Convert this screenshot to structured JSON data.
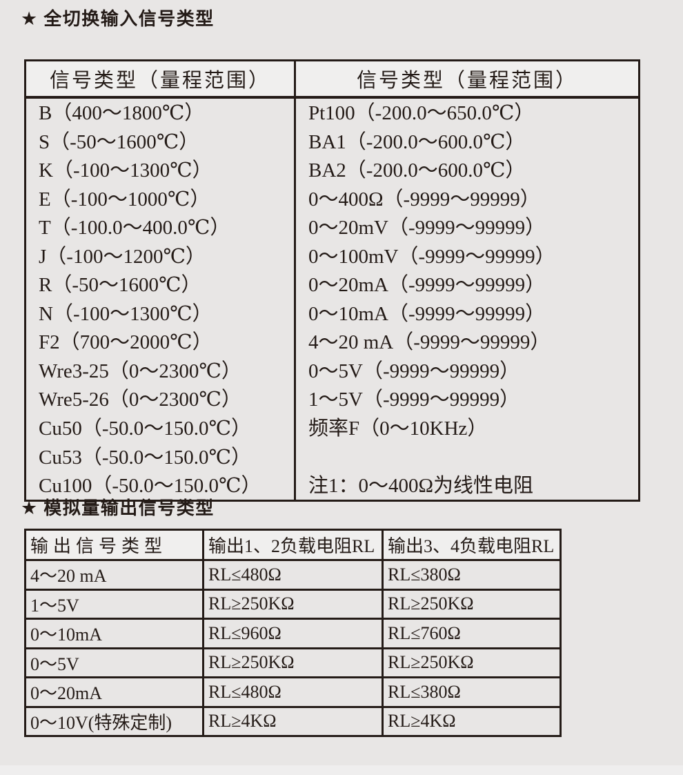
{
  "colors": {
    "page_bg": "#e8e6e5",
    "header_bg": "#f0efee",
    "border": "#241b17",
    "text": "#241b17"
  },
  "section_input": {
    "star": "★",
    "title": "全切换输入信号类型",
    "table": {
      "header_left": "信号类型（量程范围）",
      "header_right": "信号类型（量程范围）",
      "left_rows": [
        "B（400～1800℃）",
        "S（-50～1600℃）",
        "K（-100～1300℃）",
        "E（-100～1000℃）",
        "T（-100.0～400.0℃）",
        "J（-100～1200℃）",
        "R（-50～1600℃）",
        "N（-100～1300℃）",
        "F2（700～2000℃）",
        "Wre3-25（0～2300℃）",
        "Wre5-26（0～2300℃）",
        "Cu50（-50.0～150.0℃）",
        "Cu53（-50.0～150.0℃）",
        "Cu100（-50.0～150.0℃）"
      ],
      "right_rows": [
        "Pt100（-200.0～650.0℃）",
        "BA1（-200.0～600.0℃）",
        "BA2（-200.0～600.0℃）",
        "0～400Ω（-9999～99999）",
        "0～20mV（-9999～99999）",
        "0～100mV（-9999～99999）",
        "0～20mA（-9999～99999）",
        "0～10mA（-9999～99999）",
        "4～20 mA（-9999～99999）",
        "0～5V（-9999～99999）",
        "1～5V（-9999～99999）",
        "频率F（0～10KHz）"
      ],
      "note": "注1：0～400Ω为线性电阻"
    }
  },
  "section_output": {
    "star": "★",
    "title": "模拟量输出信号类型",
    "table": {
      "headers": [
        "输出信号类型",
        "输出1、2负载电阻RL",
        "输出3、4负载电阻RL"
      ],
      "rows": [
        [
          "4～20 mA",
          "RL≤480Ω",
          "RL≤380Ω"
        ],
        [
          "1～5V",
          "RL≥250KΩ",
          "RL≥250KΩ"
        ],
        [
          "0～10mA",
          "RL≤960Ω",
          "RL≤760Ω"
        ],
        [
          "0～5V",
          "RL≥250KΩ",
          "RL≥250KΩ"
        ],
        [
          "0～20mA",
          "RL≤480Ω",
          "RL≤380Ω"
        ],
        [
          "0～10V(特殊定制)",
          "RL≥4KΩ",
          "RL≥4KΩ"
        ]
      ]
    }
  }
}
